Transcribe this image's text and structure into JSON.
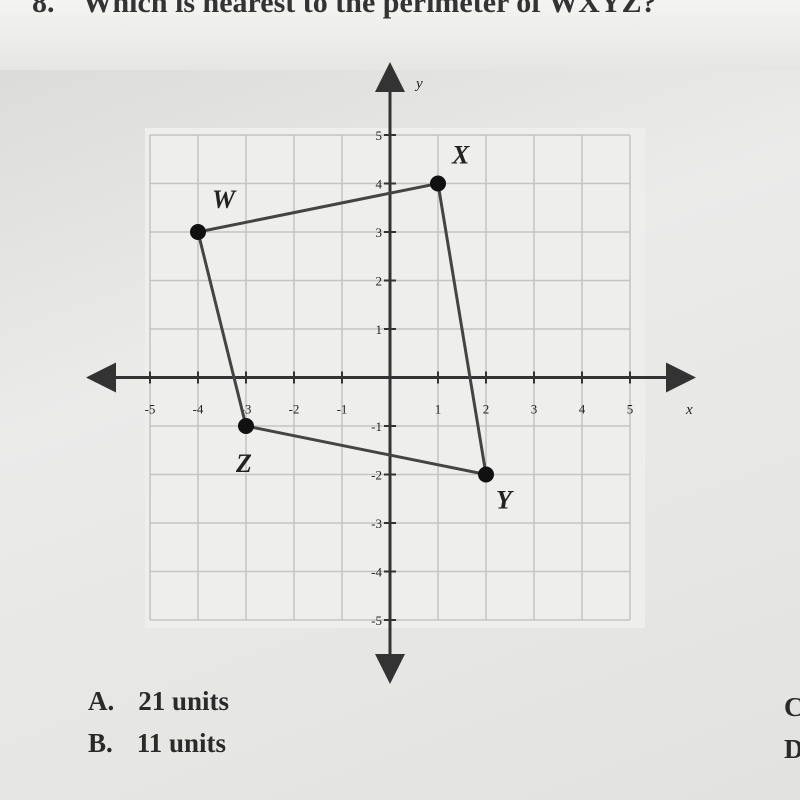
{
  "question": {
    "number": "8.",
    "text": "Which is nearest to the perimeter of WXYZ?"
  },
  "graph": {
    "xlim": [
      -5,
      5
    ],
    "ylim": [
      -5,
      5
    ],
    "xticks": [
      -5,
      -4,
      -3,
      -2,
      -1,
      1,
      2,
      3,
      4,
      5
    ],
    "yticks": [
      5,
      4,
      3,
      2,
      1,
      -1,
      -2,
      -3,
      -4,
      -5
    ],
    "x_label": "x",
    "y_label": "y",
    "points": [
      {
        "label": "W",
        "x": -4,
        "y": 3
      },
      {
        "label": "X",
        "x": 1,
        "y": 4
      },
      {
        "label": "Y",
        "x": 2,
        "y": -2
      },
      {
        "label": "Z",
        "x": -3,
        "y": -1
      }
    ]
  },
  "choices": [
    {
      "letter": "A.",
      "text": "21 units"
    },
    {
      "letter": "B.",
      "text": "11 units"
    },
    {
      "letter": "C"
    },
    {
      "letter": "D"
    }
  ]
}
